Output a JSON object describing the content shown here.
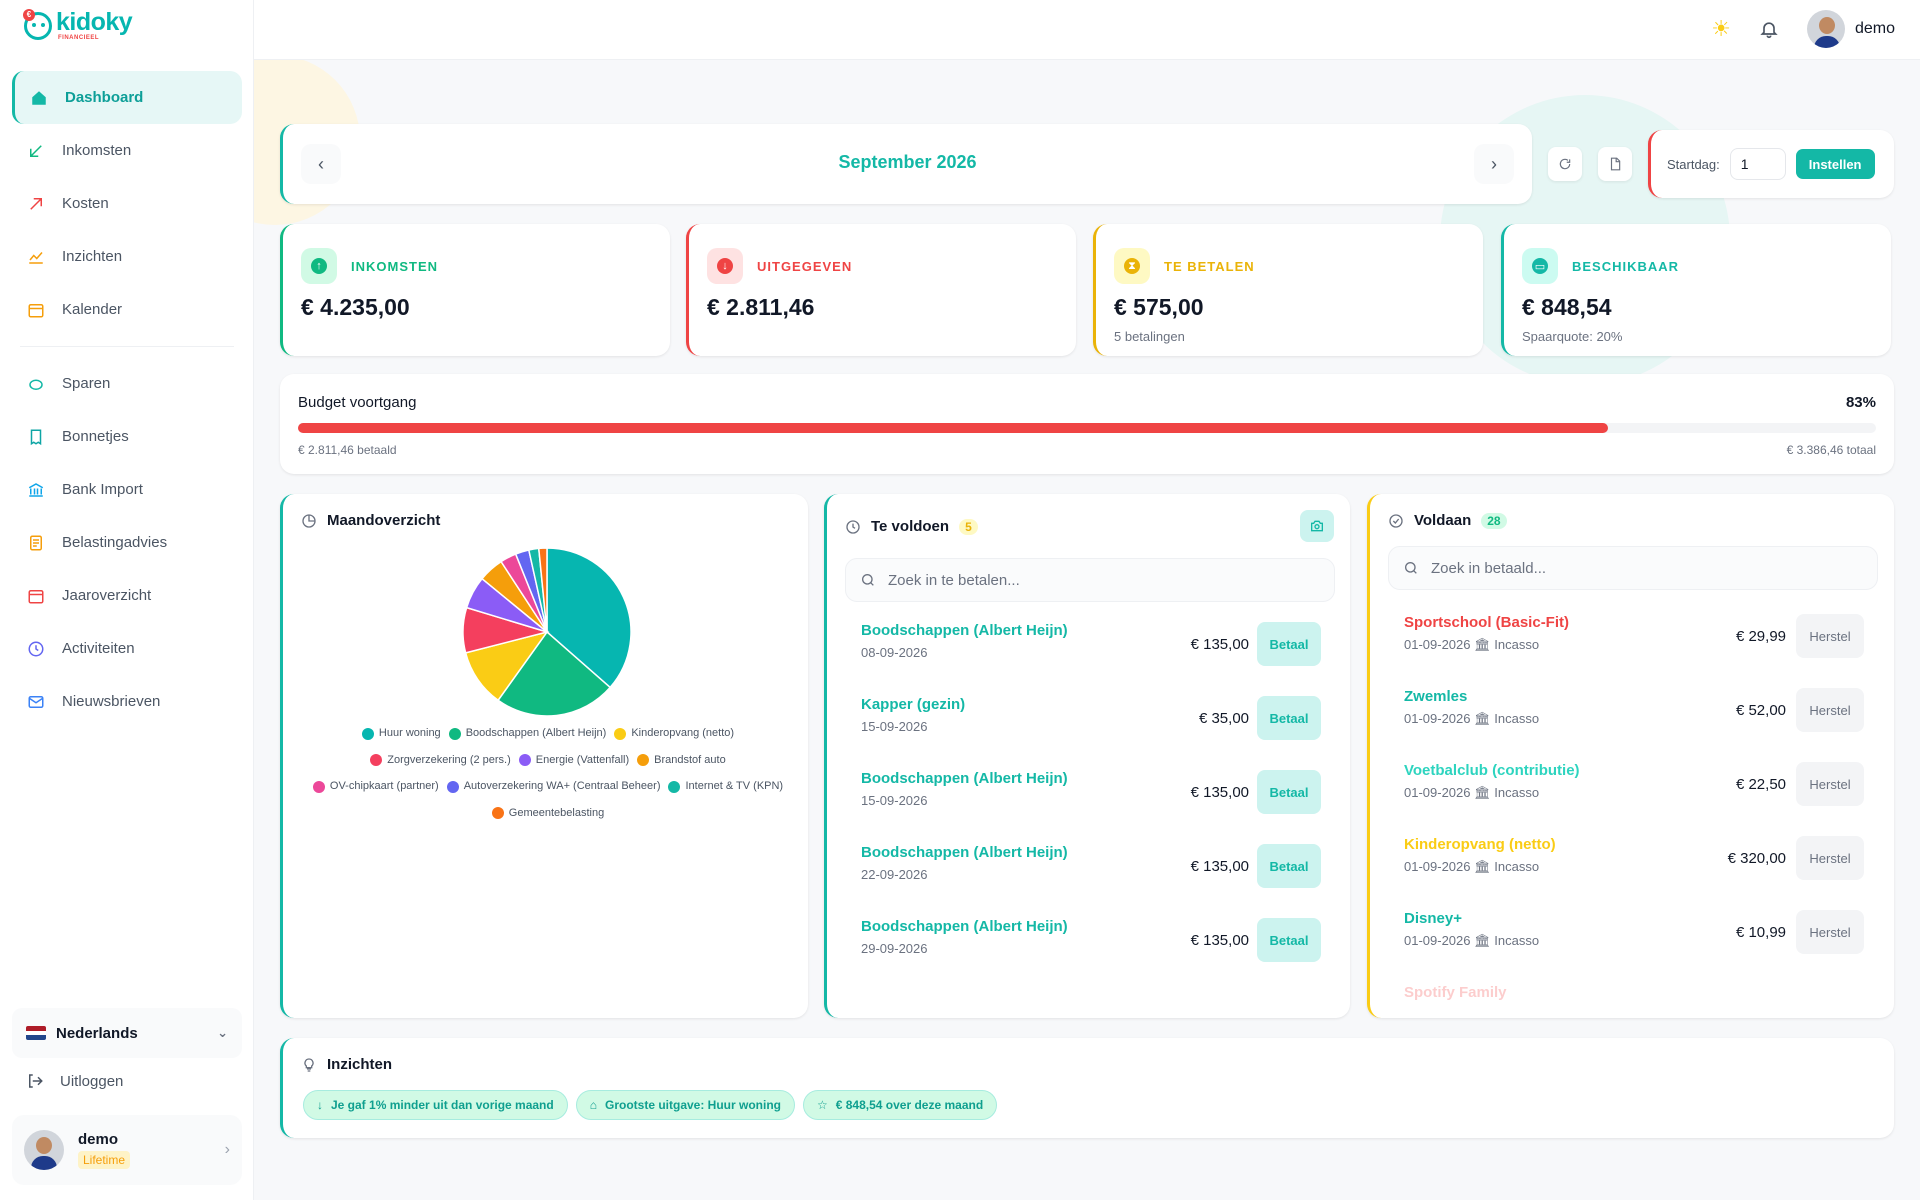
{
  "brand": {
    "name": "kidoky",
    "sub": "FINANCIEEL",
    "coin": "€"
  },
  "nav": [
    {
      "label": "Dashboard",
      "icon": "home-icon",
      "active": true
    },
    {
      "label": "Inkomsten",
      "icon": "arrow-in-icon"
    },
    {
      "label": "Kosten",
      "icon": "arrow-out-icon"
    },
    {
      "label": "Inzichten",
      "icon": "chart-icon"
    },
    {
      "label": "Kalender",
      "icon": "calendar-icon"
    },
    {
      "label": "Sparen",
      "icon": "piggy-icon"
    },
    {
      "label": "Bonnetjes",
      "icon": "receipt-icon"
    },
    {
      "label": "Bank Import",
      "icon": "bank-icon"
    },
    {
      "label": "Belastingadvies",
      "icon": "tax-icon"
    },
    {
      "label": "Jaaroverzicht",
      "icon": "year-icon"
    },
    {
      "label": "Activiteiten",
      "icon": "clock-icon"
    },
    {
      "label": "Nieuwsbrieven",
      "icon": "mail-icon"
    }
  ],
  "language": "Nederlands",
  "logout": "Uitloggen",
  "user": {
    "name": "demo",
    "plan": "Lifetime"
  },
  "header": {
    "user": "demo"
  },
  "month": {
    "title": "September 2026"
  },
  "startdag": {
    "label": "Startdag:",
    "value": "1",
    "button": "Instellen"
  },
  "stats": [
    {
      "label": "INKOMSTEN",
      "value": "€ 4.235,00",
      "sub": "",
      "color": "#10b981",
      "bg": "#d1fae5",
      "glyph": "↑"
    },
    {
      "label": "UITGEGEVEN",
      "value": "€ 2.811,46",
      "sub": "",
      "color": "#ef4444",
      "bg": "#fee2e2",
      "glyph": "↓"
    },
    {
      "label": "TE BETALEN",
      "value": "€ 575,00",
      "sub": "5 betalingen",
      "color": "#eab308",
      "bg": "#fef9c3",
      "glyph": "⧗"
    },
    {
      "label": "BESCHIKBAAR",
      "value": "€ 848,54",
      "sub": "Spaarquote: 20%",
      "color": "#14b8a6",
      "bg": "#ccfbf1",
      "glyph": "▭"
    }
  ],
  "budget": {
    "title": "Budget voortgang",
    "percent": "83%",
    "progress": 0.83,
    "paid": "€ 2.811,46 betaald",
    "total": "€ 3.386,46 totaal"
  },
  "overview": {
    "title": "Maandoverzicht"
  },
  "chart_data": {
    "type": "pie",
    "categories": [
      "Huur woning",
      "Boodschappen (Albert Heijn)",
      "Kinderopvang (netto)",
      "Zorgverzekering (2 pers.)",
      "Energie (Vattenfall)",
      "Brandstof auto",
      "OV-chipkaart (partner)",
      "Autoverzekering WA+ (Centraal Beheer)",
      "Internet & TV (KPN)",
      "Gemeentebelasting"
    ],
    "values": [
      1050,
      675,
      320,
      250,
      180,
      140,
      90,
      75,
      55,
      45
    ],
    "colors": [
      "#06b6b0",
      "#10b981",
      "#facc15",
      "#f43f5e",
      "#8b5cf6",
      "#f59e0b",
      "#ec4899",
      "#6366f1",
      "#14b8a6",
      "#f97316"
    ]
  },
  "te_voldoen": {
    "title": "Te voldoen",
    "count": "5",
    "search": "Zoek in te betalen...",
    "button": "Betaal",
    "items": [
      {
        "name": "Boodschappen (Albert Heijn)",
        "date": "08-09-2026",
        "amount": "€ 135,00"
      },
      {
        "name": "Kapper (gezin)",
        "date": "15-09-2026",
        "amount": "€ 35,00"
      },
      {
        "name": "Boodschappen (Albert Heijn)",
        "date": "15-09-2026",
        "amount": "€ 135,00"
      },
      {
        "name": "Boodschappen (Albert Heijn)",
        "date": "22-09-2026",
        "amount": "€ 135,00"
      },
      {
        "name": "Boodschappen (Albert Heijn)",
        "date": "29-09-2026",
        "amount": "€ 135,00"
      }
    ]
  },
  "voldaan": {
    "title": "Voldaan",
    "count": "28",
    "search": "Zoek in betaald...",
    "button": "Herstel",
    "items": [
      {
        "name": "Sportschool (Basic-Fit)",
        "date": "01-09-2026",
        "method": "Incasso",
        "amount": "€ 29,99",
        "color": "#ef4444"
      },
      {
        "name": "Zwemles",
        "date": "01-09-2026",
        "method": "Incasso",
        "amount": "€ 52,00",
        "color": "#14b8a6"
      },
      {
        "name": "Voetbalclub (contributie)",
        "date": "01-09-2026",
        "method": "Incasso",
        "amount": "€ 22,50",
        "color": "#2dd4bf"
      },
      {
        "name": "Kinderopvang (netto)",
        "date": "01-09-2026",
        "method": "Incasso",
        "amount": "€ 320,00",
        "color": "#facc15"
      },
      {
        "name": "Disney+",
        "date": "01-09-2026",
        "method": "Incasso",
        "amount": "€ 10,99",
        "color": "#14b8a6"
      },
      {
        "name": "Spotify Family",
        "date": "",
        "method": "",
        "amount": "",
        "color": "#f87171"
      }
    ]
  },
  "insights": {
    "title": "Inzichten",
    "chips": [
      {
        "icon": "arrow-down-icon",
        "glyph": "↓",
        "text": "Je gaf 1% minder uit dan vorige maand"
      },
      {
        "icon": "tag-icon",
        "glyph": "⌂",
        "text": "Grootste uitgave: Huur woning"
      },
      {
        "icon": "piggy-icon",
        "glyph": "☆",
        "text": "€ 848,54 over deze maand"
      }
    ]
  }
}
